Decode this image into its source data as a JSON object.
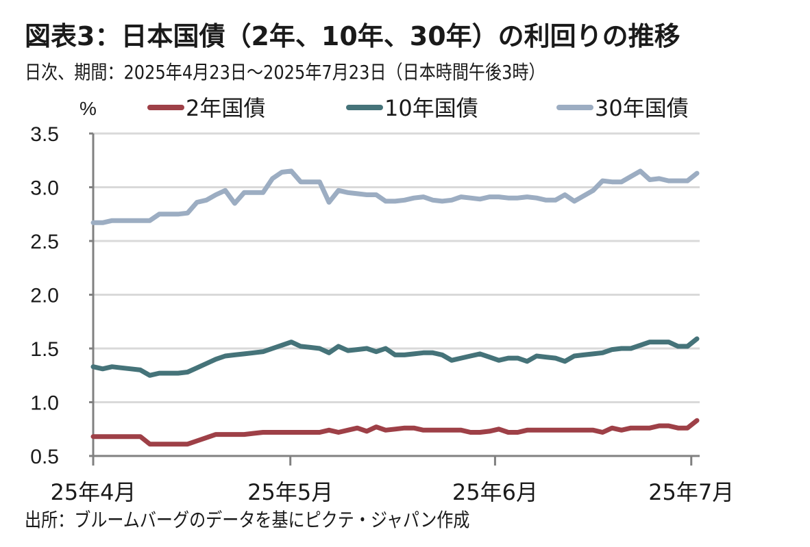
{
  "title": "図表3：日本国債（2年、10年、30年）の利回りの推移",
  "subtitle": "日次、期間：2025年4月23日～2025年7月23日（日本時間午後3時）",
  "source": "出所：ブルームバーグのデータを基にピクテ・ジャパン作成",
  "chart_data": {
    "type": "line",
    "title": "図表3：日本国債（2年、10年、30年）の利回りの推移",
    "subtitle": "日次、期間：2025年4月23日～2025年7月23日（日本時間午後3時）",
    "ylabel": "%",
    "xlabel": "",
    "ylim": [
      0.5,
      3.5
    ],
    "yticks": [
      "0.5",
      "1.0",
      "1.5",
      "2.0",
      "2.5",
      "3.0",
      "3.5"
    ],
    "ytick_values": [
      0.5,
      1.0,
      1.5,
      2.0,
      2.5,
      3.0,
      3.5
    ],
    "x_range": [
      0,
      64
    ],
    "x_unit": "business-day index from 2025-04-23",
    "xticks": [
      {
        "label": "25年4月",
        "index": 0
      },
      {
        "label": "25年5月",
        "index": 20.9
      },
      {
        "label": "25年6月",
        "index": 42.6
      },
      {
        "label": "25年7月",
        "index": 63.4
      }
    ],
    "grid": true,
    "legend": "top",
    "series": [
      {
        "name": "2年国債",
        "color": "#9e4047",
        "values": [
          0.68,
          0.68,
          0.68,
          0.68,
          0.68,
          0.68,
          0.61,
          0.61,
          0.61,
          0.61,
          0.61,
          0.64,
          0.67,
          0.7,
          0.7,
          0.7,
          0.7,
          0.71,
          0.72,
          0.72,
          0.72,
          0.72,
          0.72,
          0.72,
          0.72,
          0.74,
          0.72,
          0.74,
          0.76,
          0.73,
          0.77,
          0.74,
          0.75,
          0.76,
          0.76,
          0.74,
          0.74,
          0.74,
          0.74,
          0.74,
          0.72,
          0.72,
          0.73,
          0.75,
          0.72,
          0.72,
          0.74,
          0.74,
          0.74,
          0.74,
          0.74,
          0.74,
          0.74,
          0.74,
          0.72,
          0.76,
          0.74,
          0.76,
          0.76,
          0.76,
          0.78,
          0.78,
          0.76,
          0.76,
          0.83
        ]
      },
      {
        "name": "10年国債",
        "color": "#457379",
        "values": [
          1.33,
          1.31,
          1.33,
          1.32,
          1.31,
          1.3,
          1.25,
          1.27,
          1.27,
          1.27,
          1.28,
          1.32,
          1.36,
          1.4,
          1.43,
          1.44,
          1.45,
          1.46,
          1.47,
          1.5,
          1.53,
          1.56,
          1.52,
          1.51,
          1.5,
          1.46,
          1.52,
          1.48,
          1.49,
          1.5,
          1.47,
          1.5,
          1.44,
          1.44,
          1.45,
          1.46,
          1.46,
          1.44,
          1.39,
          1.41,
          1.43,
          1.45,
          1.42,
          1.39,
          1.41,
          1.41,
          1.38,
          1.43,
          1.42,
          1.41,
          1.38,
          1.43,
          1.44,
          1.45,
          1.46,
          1.49,
          1.5,
          1.5,
          1.53,
          1.56,
          1.56,
          1.56,
          1.52,
          1.52,
          1.59
        ]
      },
      {
        "name": "30年国債",
        "color": "#9cadc2",
        "values": [
          2.67,
          2.67,
          2.69,
          2.69,
          2.69,
          2.69,
          2.69,
          2.75,
          2.75,
          2.75,
          2.76,
          2.86,
          2.88,
          2.93,
          2.97,
          2.85,
          2.95,
          2.95,
          2.95,
          3.08,
          3.14,
          3.15,
          3.05,
          3.05,
          3.05,
          2.86,
          2.97,
          2.95,
          2.94,
          2.93,
          2.93,
          2.87,
          2.87,
          2.88,
          2.9,
          2.91,
          2.88,
          2.87,
          2.88,
          2.91,
          2.9,
          2.89,
          2.91,
          2.91,
          2.9,
          2.9,
          2.91,
          2.9,
          2.88,
          2.88,
          2.93,
          2.87,
          2.92,
          2.97,
          3.06,
          3.05,
          3.05,
          3.1,
          3.15,
          3.07,
          3.08,
          3.06,
          3.06,
          3.06,
          3.13
        ]
      }
    ]
  }
}
